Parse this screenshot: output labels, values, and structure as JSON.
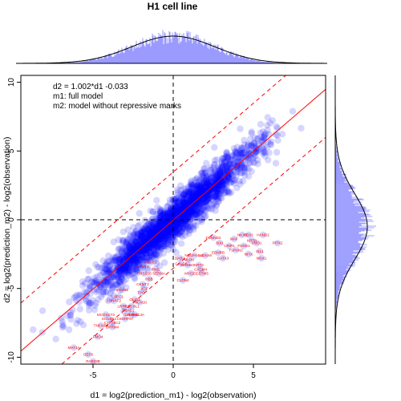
{
  "chart_data": {
    "type": "scatter",
    "title": "H1 cell line",
    "xlabel": "d1 = log2(prediction_m1) - log2(observation)",
    "ylabel": "d2 = log2(prediction_m2) - log2(observation)",
    "xlim": [
      -9.5,
      9.5
    ],
    "ylim": [
      -10.5,
      10.5
    ],
    "x_ticks": [
      -5,
      0,
      5
    ],
    "y_ticks": [
      -10,
      -5,
      0,
      5,
      10
    ],
    "annotations": [
      "d2 = 1.002*d1 -0.033",
      "m1: full model",
      "m2: model without repressive marks"
    ],
    "fit_line": {
      "slope": 1.002,
      "intercept": -0.033
    },
    "band_offset": 3.5,
    "reference_lines": {
      "x": 0,
      "y": 0
    },
    "point_color": "#0000ff",
    "fit_color": "#ff0000",
    "label_color": "#ff0000",
    "marginal_x": {
      "type": "histogram+density",
      "color": "#8080ff",
      "sd": 2.6
    },
    "marginal_y": {
      "type": "histogram+density",
      "color": "#8080ff",
      "sd": 2.4
    },
    "labeled_points": [
      {
        "label": "MAT1A",
        "x": -6.2,
        "y": -9.3
      },
      {
        "label": "DEF8",
        "x": -5.3,
        "y": -9.8
      },
      {
        "label": "RAB23B",
        "x": -5.0,
        "y": -10.3
      },
      {
        "label": "FMO4",
        "x": -4.7,
        "y": -8.5
      },
      {
        "label": "TNFAIP3",
        "x": -4.5,
        "y": -7.7
      },
      {
        "label": "OPRM4",
        "x": -3.8,
        "y": -7.8
      },
      {
        "label": "MCOSST2",
        "x": -4.2,
        "y": -6.9
      },
      {
        "label": "SCUBE1",
        "x": -4.0,
        "y": -7.2
      },
      {
        "label": "CYP26C2",
        "x": -3.8,
        "y": -7.5
      },
      {
        "label": "C6ORF87",
        "x": -3.0,
        "y": -7.2
      },
      {
        "label": "CHMP4C",
        "x": -2.6,
        "y": -6.9
      },
      {
        "label": "CRABBL3A",
        "x": -2.4,
        "y": -6.9
      },
      {
        "label": "FRAC2",
        "x": -2.8,
        "y": -6.6
      },
      {
        "label": "LRRC6",
        "x": -3.1,
        "y": -6.3
      },
      {
        "label": "PLAC8L1",
        "x": -2.6,
        "y": -6.3
      },
      {
        "label": "LONRF2",
        "x": -3.7,
        "y": -5.9
      },
      {
        "label": "SEC1",
        "x": -3.4,
        "y": -5.6
      },
      {
        "label": "OLIG1",
        "x": -2.4,
        "y": -5.8
      },
      {
        "label": "TNCN10",
        "x": -2.1,
        "y": -6.0
      },
      {
        "label": "STMN2",
        "x": -3.2,
        "y": -5.1
      },
      {
        "label": "TPO",
        "x": -2.0,
        "y": -5.3
      },
      {
        "label": "VGF",
        "x": -1.8,
        "y": -5.0
      },
      {
        "label": "CKMT2",
        "x": -1.9,
        "y": -4.7
      },
      {
        "label": "PRSS16",
        "x": -1.8,
        "y": -3.9
      },
      {
        "label": "NUDT4",
        "x": -1.9,
        "y": -3.4
      },
      {
        "label": "FNDC1",
        "x": -1.4,
        "y": -3.1
      },
      {
        "label": "PIM1",
        "x": -1.1,
        "y": -3.6
      },
      {
        "label": "SERNA",
        "x": -0.9,
        "y": -3.9
      },
      {
        "label": "HBB",
        "x": -1.5,
        "y": -4.3
      },
      {
        "label": "DAB2",
        "x": 0.4,
        "y": -2.8
      },
      {
        "label": "CALCB",
        "x": 0.5,
        "y": -3.2
      },
      {
        "label": "MLPH",
        "x": 1.0,
        "y": -2.9
      },
      {
        "label": "NDUFA4L2",
        "x": 1.3,
        "y": -2.6
      },
      {
        "label": "KCNN3",
        "x": 0.9,
        "y": -3.3
      },
      {
        "label": "KRT4",
        "x": 1.6,
        "y": -3.3
      },
      {
        "label": "HOXA9",
        "x": 2.0,
        "y": -2.6
      },
      {
        "label": "CADM4",
        "x": 1.7,
        "y": -3.6
      },
      {
        "label": "CLDN4",
        "x": 0.6,
        "y": -4.4
      },
      {
        "label": "MYOZ1",
        "x": 1.1,
        "y": -3.9
      },
      {
        "label": "GSTM5",
        "x": 1.8,
        "y": -3.9
      },
      {
        "label": "DENND2",
        "x": 2.5,
        "y": -1.3
      },
      {
        "label": "SIX1",
        "x": 2.9,
        "y": -1.7
      },
      {
        "label": "CRIP1",
        "x": 3.5,
        "y": -1.9
      },
      {
        "label": "TSPAN2",
        "x": 3.9,
        "y": -2.2
      },
      {
        "label": "FOXD1",
        "x": 4.4,
        "y": -1.9
      },
      {
        "label": "MAF",
        "x": 3.8,
        "y": -1.4
      },
      {
        "label": "NKX6",
        "x": 4.3,
        "y": -1.1
      },
      {
        "label": "TBX1",
        "x": 4.7,
        "y": -1.1
      },
      {
        "label": "KRT8",
        "x": 4.9,
        "y": -1.5
      },
      {
        "label": "LMO1",
        "x": 5.2,
        "y": -1.7
      },
      {
        "label": "HAND2",
        "x": 5.6,
        "y": -1.1
      },
      {
        "label": "ISL1",
        "x": 5.4,
        "y": -2.3
      },
      {
        "label": "NFIX",
        "x": 4.7,
        "y": -2.5
      },
      {
        "label": "PITX2",
        "x": 6.5,
        "y": -1.7
      },
      {
        "label": "MSX1",
        "x": 5.5,
        "y": -2.8
      },
      {
        "label": "EDNRB",
        "x": 2.8,
        "y": -2.4
      },
      {
        "label": "GATA3",
        "x": 3.1,
        "y": -2.8
      }
    ]
  }
}
